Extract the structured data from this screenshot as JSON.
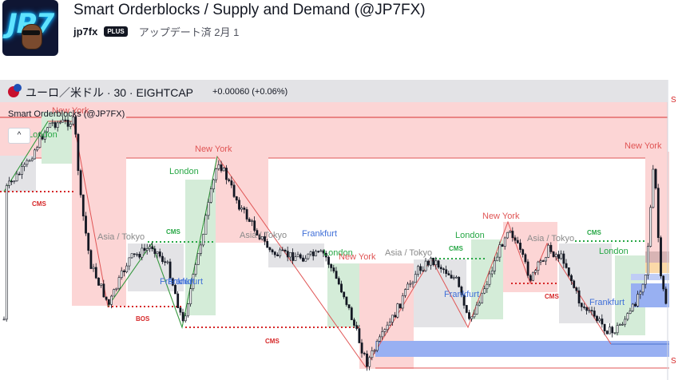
{
  "header": {
    "logo_text": "JP7",
    "title": "Smart Orderblocks / Supply and Demand (@JP7FX)",
    "author": "jp7fx",
    "badge": "PLUS",
    "updated": "アップデート済 2月 1"
  },
  "chart": {
    "symbol": "ユーロ／米ドル · 30 · EIGHTCAP",
    "change": "+0.00060 (+0.06%)",
    "indicator": "Smart Orderblocks (@JP7FX)",
    "collapse_glyph": "^",
    "right_marker_top": "S",
    "right_marker_bottom": "S"
  },
  "session_labels": [
    {
      "text": "New York",
      "color": "#e05555"
    },
    {
      "text": "London",
      "color": "#27a745"
    },
    {
      "text": "Frankfurt",
      "color": "#3f6fd8"
    },
    {
      "text": "New York",
      "color": "#e05555"
    },
    {
      "text": "London",
      "color": "#27a745"
    },
    {
      "text": "Asia / Tokyo",
      "color": "#8a8a8a"
    },
    {
      "text": "Frankfurt",
      "color": "#3f6fd8"
    },
    {
      "text": "Asia / Tokyo",
      "color": "#8a8a8a"
    },
    {
      "text": "Frankfurt",
      "color": "#3f6fd8"
    },
    {
      "text": "London",
      "color": "#27a745"
    },
    {
      "text": "New York",
      "color": "#e05555"
    },
    {
      "text": "Asia / Tokyo",
      "color": "#8a8a8a"
    },
    {
      "text": "Frankfurt",
      "color": "#3f6fd8"
    },
    {
      "text": "London",
      "color": "#27a745"
    },
    {
      "text": "New York",
      "color": "#e05555"
    },
    {
      "text": "Asia / Tokyo",
      "color": "#8a8a8a"
    },
    {
      "text": "London",
      "color": "#27a745"
    },
    {
      "text": "Frankfurt",
      "color": "#3f6fd8"
    },
    {
      "text": "New York",
      "color": "#e05555"
    }
  ],
  "structure_labels": [
    {
      "text": "CMS",
      "color": "#d62728"
    },
    {
      "text": "CMS",
      "color": "#27a745"
    },
    {
      "text": "BOS",
      "color": "#d62728"
    },
    {
      "text": "CMS",
      "color": "#d62728"
    },
    {
      "text": "CMS",
      "color": "#27a745"
    },
    {
      "text": "CMS",
      "color": "#d62728"
    },
    {
      "text": "CMS",
      "color": "#27a745"
    }
  ]
}
